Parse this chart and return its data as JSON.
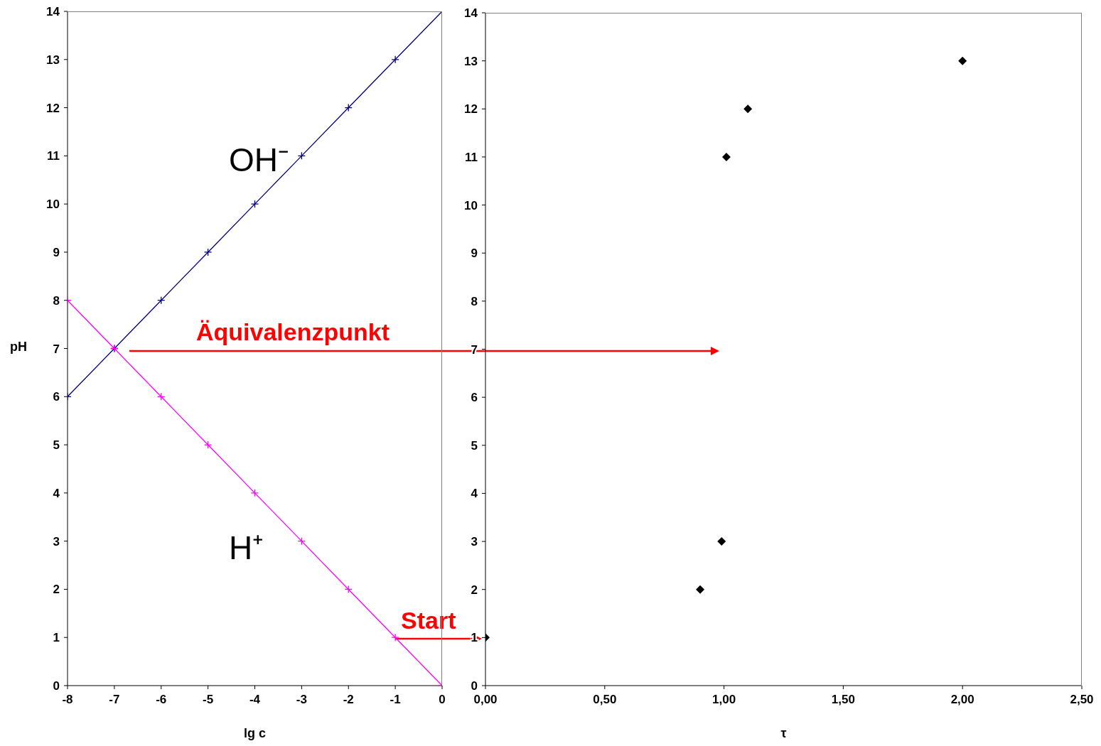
{
  "chart_data": [
    {
      "type": "line",
      "xlabel": "lg c",
      "ylabel": "pH",
      "xlim": [
        -8,
        0
      ],
      "xticks": [
        -8,
        -7,
        -6,
        -5,
        -4,
        -3,
        -2,
        -1,
        0
      ],
      "ylim": [
        0,
        14
      ],
      "yticks": [
        0,
        1,
        2,
        3,
        4,
        5,
        6,
        7,
        8,
        9,
        10,
        11,
        12,
        13,
        14
      ],
      "grid": false,
      "legend": false,
      "series": [
        {
          "name": "OH⁻",
          "color": "#000080",
          "marker": "cross",
          "x": [
            -8,
            -7,
            -6,
            -5,
            -4,
            -3,
            -2,
            -1,
            0
          ],
          "values": [
            6,
            7,
            8,
            9,
            10,
            11,
            12,
            13,
            14
          ]
        },
        {
          "name": "H⁺",
          "color": "#ff00ff",
          "marker": "cross",
          "x": [
            -8,
            -7,
            -6,
            -5,
            -4,
            -3,
            -2,
            -1,
            0
          ],
          "values": [
            8,
            7,
            6,
            5,
            4,
            3,
            2,
            1,
            0
          ]
        }
      ],
      "annotations": [
        "Äquivalenzpunkt",
        "Start"
      ]
    },
    {
      "type": "scatter",
      "xlabel": "τ",
      "xlim": [
        0,
        2.5
      ],
      "xticks": [
        {
          "value": 0,
          "label": "0,00"
        },
        {
          "value": 0.5,
          "label": "0,50"
        },
        {
          "value": 1,
          "label": "1,00"
        },
        {
          "value": 1.5,
          "label": "1,50"
        },
        {
          "value": 2,
          "label": "2,00"
        },
        {
          "value": 2.5,
          "label": "2,50"
        }
      ],
      "ylim": [
        0,
        14
      ],
      "yticks": [
        0,
        1,
        2,
        3,
        4,
        5,
        6,
        7,
        8,
        9,
        10,
        11,
        12,
        13,
        14
      ],
      "grid": false,
      "legend": false,
      "series": [
        {
          "color": "#000000",
          "marker": "diamond",
          "x": [
            0,
            0.9,
            0.99,
            1.01,
            1.1,
            2
          ],
          "values": [
            1,
            2,
            3,
            11,
            12,
            13
          ]
        }
      ]
    }
  ]
}
